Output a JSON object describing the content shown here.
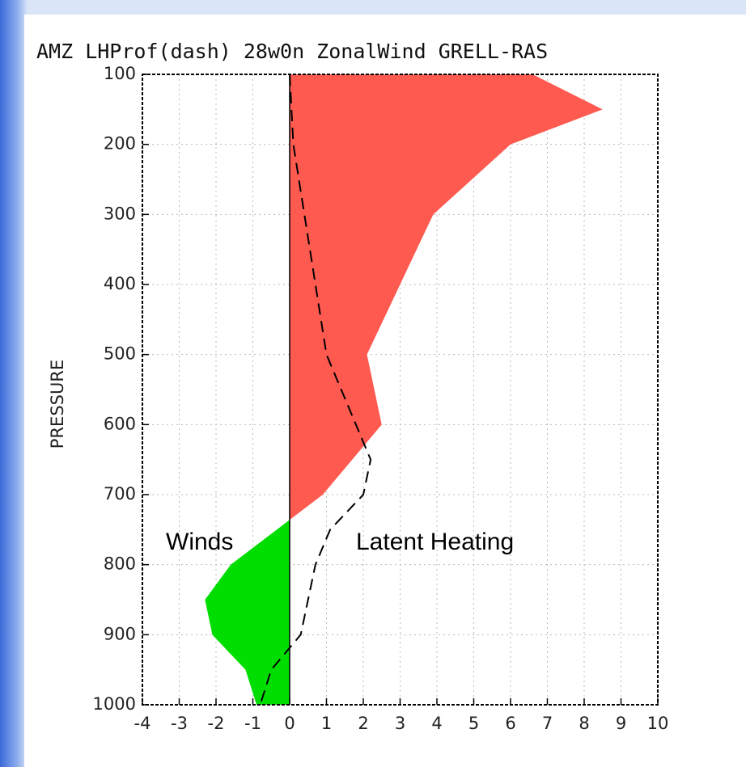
{
  "chart_data": {
    "type": "profile",
    "title": "AMZ LHProf(dash) 28w0n ZonalWind GRELL-RAS",
    "ylabel": "PRESSURE",
    "annotations": [
      "Winds",
      "Latent Heating"
    ],
    "xlim": [
      -4,
      10
    ],
    "xticks": [
      -4,
      -3,
      -2,
      -1,
      0,
      1,
      2,
      3,
      4,
      5,
      6,
      7,
      8,
      9,
      10
    ],
    "ylim": [
      100,
      1000
    ],
    "yticks": [
      100,
      200,
      300,
      400,
      500,
      600,
      700,
      800,
      900,
      1000
    ],
    "y_inverted": true,
    "grid": true,
    "series": [
      {
        "style": "filled",
        "color_positive": "#ff5a50",
        "color_negative": "#00dd00",
        "pressure": [
          100,
          150,
          200,
          300,
          400,
          500,
          600,
          700,
          800,
          850,
          900,
          950,
          1000
        ],
        "values": [
          6.6,
          8.5,
          6,
          3.9,
          3.0,
          2.1,
          2.5,
          0.9,
          -1.6,
          -2.3,
          -2.1,
          -1.2,
          -0.9
        ]
      },
      {
        "style": "dashed",
        "color": "#000000",
        "pressure": [
          100,
          150,
          200,
          300,
          400,
          500,
          600,
          650,
          700,
          750,
          800,
          850,
          900,
          950,
          1000
        ],
        "values": [
          0,
          0.05,
          0.1,
          0.4,
          0.7,
          1.0,
          1.8,
          2.2,
          2.0,
          1.1,
          0.7,
          0.5,
          0.3,
          -0.5,
          -0.8
        ]
      }
    ]
  }
}
